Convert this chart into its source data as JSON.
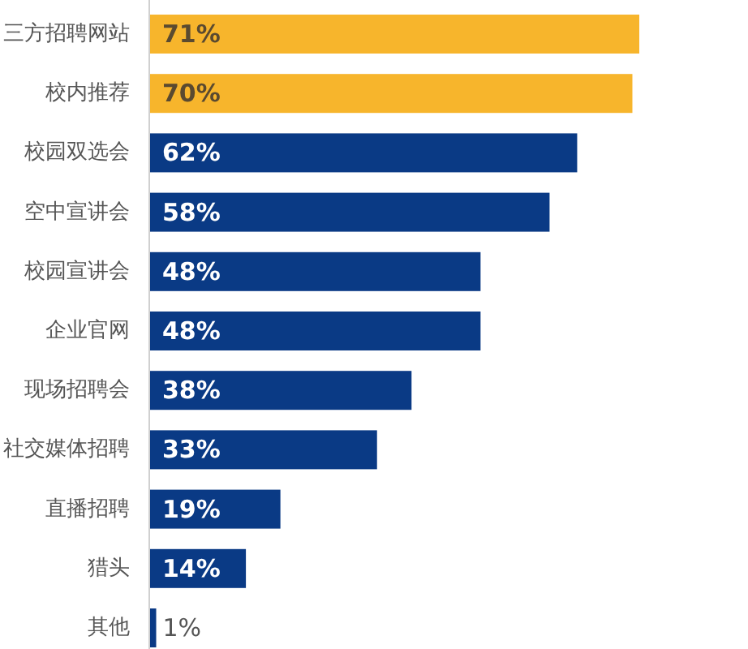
{
  "chart_data": {
    "type": "bar",
    "orientation": "horizontal",
    "categories": [
      "三方招聘网站",
      "校内推荐",
      "校园双选会",
      "空中宣讲会",
      "校园宣讲会",
      "企业官网",
      "现场招聘会",
      "社交媒体招聘",
      "直播招聘",
      "猎头",
      "其他"
    ],
    "values": [
      71,
      70,
      62,
      58,
      48,
      48,
      38,
      33,
      19,
      14,
      1
    ],
    "colors": [
      "#f7b52c",
      "#f7b52c",
      "#0a3a85",
      "#0a3a85",
      "#0a3a85",
      "#0a3a85",
      "#0a3a85",
      "#0a3a85",
      "#0a3a85",
      "#0a3a85",
      "#0a3a85"
    ],
    "value_labels": [
      "71%",
      "70%",
      "62%",
      "58%",
      "48%",
      "48%",
      "38%",
      "33%",
      "19%",
      "14%",
      "1%"
    ],
    "tick_labels": "y"
  }
}
